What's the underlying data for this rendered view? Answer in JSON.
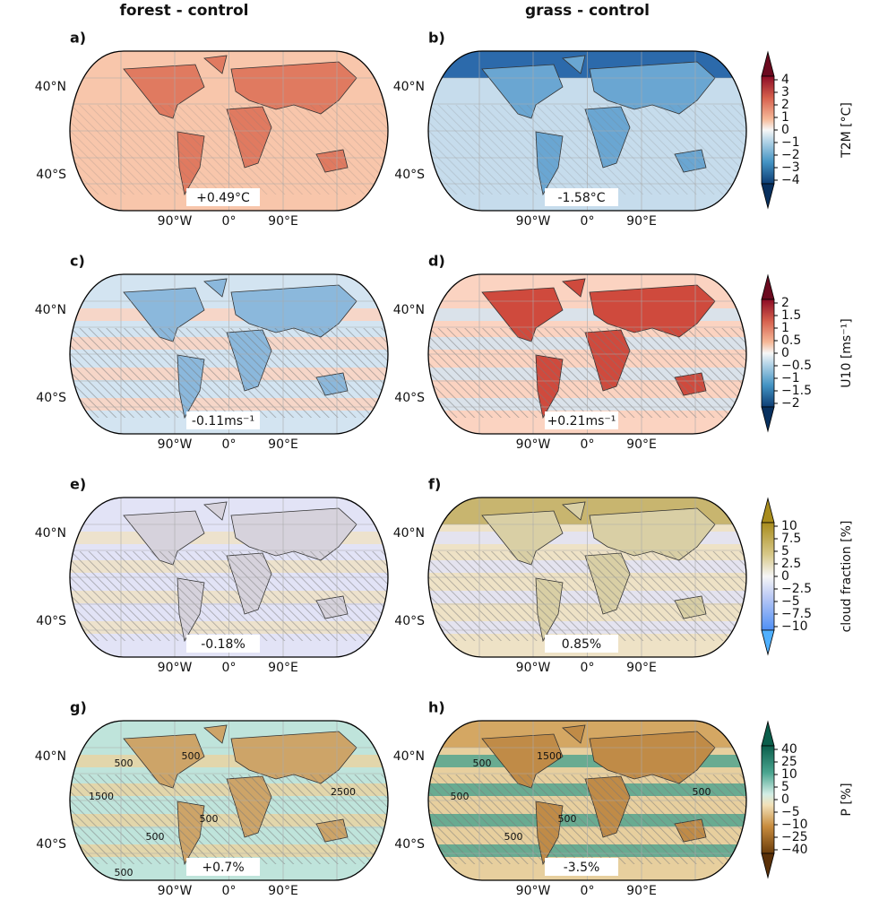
{
  "columns": [
    "forest - control",
    "grass - control"
  ],
  "panels": [
    {
      "label": "a)",
      "annotation": "+0.49°C",
      "lat_labels": [
        "40°N",
        "40°S"
      ],
      "lon_labels": [
        "90°W",
        "0°",
        "90°E"
      ]
    },
    {
      "label": "b)",
      "annotation": "-1.58°C",
      "lat_labels": [
        "40°N",
        "40°S"
      ],
      "lon_labels": [
        "90°W",
        "0°",
        "90°E"
      ]
    },
    {
      "label": "c)",
      "annotation": "-0.11ms⁻¹",
      "lat_labels": [
        "40°N",
        "40°S"
      ],
      "lon_labels": [
        "90°W",
        "0°",
        "90°E"
      ]
    },
    {
      "label": "d)",
      "annotation": "+0.21ms⁻¹",
      "lat_labels": [
        "40°N",
        "40°S"
      ],
      "lon_labels": [
        "90°W",
        "0°",
        "90°E"
      ]
    },
    {
      "label": "e)",
      "annotation": "-0.18%",
      "lat_labels": [
        "40°N",
        "40°S"
      ],
      "lon_labels": [
        "90°W",
        "0°",
        "90°E"
      ]
    },
    {
      "label": "f)",
      "annotation": "0.85%",
      "lat_labels": [
        "40°N",
        "40°S"
      ],
      "lon_labels": [
        "90°W",
        "0°",
        "90°E"
      ]
    },
    {
      "label": "g)",
      "annotation": "+0.7%",
      "lat_labels": [
        "40°N",
        "40°S"
      ],
      "lon_labels": [
        "90°W",
        "0°",
        "90°E"
      ],
      "contour_labels": [
        "500",
        "500",
        "1500",
        "2500",
        "500",
        "500",
        "500"
      ]
    },
    {
      "label": "h)",
      "annotation": "-3.5%",
      "lat_labels": [
        "40°N",
        "40°S"
      ],
      "lon_labels": [
        "90°W",
        "0°",
        "90°E"
      ],
      "contour_labels": [
        "500",
        "1500",
        "500",
        "500",
        "500",
        "500"
      ]
    }
  ],
  "colorbars": [
    {
      "label": "T2M [°C]",
      "ticks": [
        "4",
        "3",
        "2",
        "1",
        "0",
        "−1",
        "−2",
        "−3",
        "−4"
      ]
    },
    {
      "label": "U10 [ms⁻¹]",
      "ticks": [
        "2",
        "1.5",
        "1",
        "0.5",
        "0",
        "−0.5",
        "−1",
        "−1.5",
        "−2"
      ]
    },
    {
      "label": "cloud fraction [%]",
      "ticks": [
        "10",
        "7.5",
        "5",
        "2.5",
        "0",
        "−2.5",
        "−5",
        "−7.5",
        "−10"
      ]
    },
    {
      "label": "P [%]",
      "ticks": [
        "40",
        "25",
        "10",
        "5",
        "0",
        "−5",
        "−10",
        "−25",
        "−40"
      ]
    }
  ]
}
